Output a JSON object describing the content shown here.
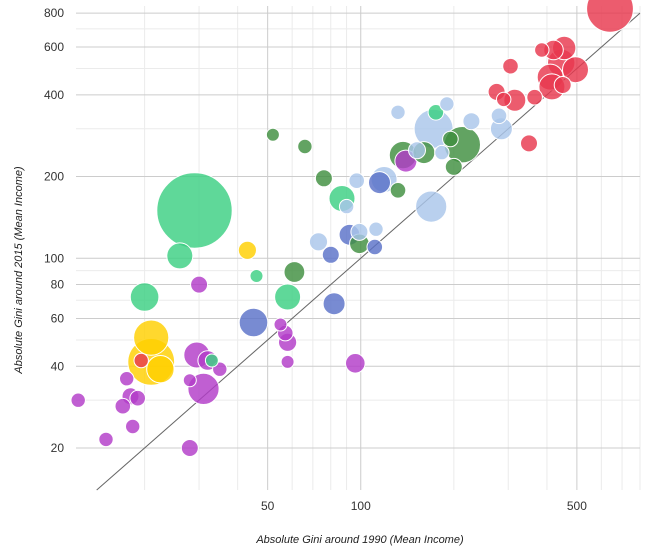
{
  "chart_data": {
    "type": "scatter",
    "subtype": "bubble",
    "title": "",
    "xlabel": "Absolute Gini around 1990 (Mean Income)",
    "ylabel": "Absolute Gini around 2015 (Mean Income)",
    "xscale": "log",
    "yscale": "log",
    "xlim": [
      12,
      800
    ],
    "ylim": [
      14,
      850
    ],
    "x_ticks": [
      50,
      100,
      500
    ],
    "y_ticks": [
      20,
      40,
      60,
      80,
      100,
      200,
      400,
      600,
      800
    ],
    "x_tick_labels": [
      "50",
      "100",
      "500"
    ],
    "y_tick_labels": [
      "20",
      "40",
      "60",
      "80",
      "100",
      "200",
      "400",
      "600",
      "800"
    ],
    "reference_line": "y = x",
    "grid": true,
    "legend": "none",
    "group_colors": {
      "purple": "#b23cc8",
      "yellow": "#ffd000",
      "green_light": "#3ccf82",
      "green_dark": "#3f8f3f",
      "blue_dark": "#5a72c8",
      "blue_light": "#aac6ea",
      "red": "#e8384e"
    },
    "points": [
      {
        "group": "purple",
        "x": 12.2,
        "y": 30,
        "size": 1.1
      },
      {
        "group": "purple",
        "x": 15,
        "y": 21.5,
        "size": 1.1
      },
      {
        "group": "purple",
        "x": 17,
        "y": 28.5,
        "size": 1.2
      },
      {
        "group": "purple",
        "x": 17.5,
        "y": 36,
        "size": 1.1
      },
      {
        "group": "purple",
        "x": 18,
        "y": 31,
        "size": 1.3
      },
      {
        "group": "purple",
        "x": 18.3,
        "y": 24,
        "size": 1.1
      },
      {
        "group": "purple",
        "x": 19,
        "y": 30.5,
        "size": 1.2
      },
      {
        "group": "purple",
        "x": 28,
        "y": 20,
        "size": 1.3
      },
      {
        "group": "purple",
        "x": 28,
        "y": 35.5,
        "size": 1.0
      },
      {
        "group": "purple",
        "x": 29.5,
        "y": 44,
        "size": 2.0
      },
      {
        "group": "purple",
        "x": 30,
        "y": 80,
        "size": 1.3
      },
      {
        "group": "purple",
        "x": 31,
        "y": 33,
        "size": 2.4
      },
      {
        "group": "purple",
        "x": 32,
        "y": 42,
        "size": 1.5
      },
      {
        "group": "purple",
        "x": 35,
        "y": 39,
        "size": 1.1
      },
      {
        "group": "purple",
        "x": 55,
        "y": 57,
        "size": 1.0
      },
      {
        "group": "purple",
        "x": 57,
        "y": 53,
        "size": 1.2
      },
      {
        "group": "purple",
        "x": 58,
        "y": 49,
        "size": 1.4
      },
      {
        "group": "purple",
        "x": 58,
        "y": 41.5,
        "size": 1.0
      },
      {
        "group": "purple",
        "x": 96,
        "y": 41,
        "size": 1.5
      },
      {
        "group": "purple",
        "x": 140,
        "y": 228,
        "size": 1.7
      },
      {
        "group": "yellow",
        "x": 21,
        "y": 51,
        "size": 2.7
      },
      {
        "group": "yellow",
        "x": 21,
        "y": 41.5,
        "size": 3.6
      },
      {
        "group": "yellow",
        "x": 22.5,
        "y": 39,
        "size": 2.1
      },
      {
        "group": "yellow",
        "x": 43,
        "y": 107,
        "size": 1.4
      },
      {
        "group": "red",
        "x": 19.5,
        "y": 42,
        "size": 1.1
      },
      {
        "group": "green_light",
        "x": 20,
        "y": 72,
        "size": 2.2
      },
      {
        "group": "green_light",
        "x": 26,
        "y": 102,
        "size": 2.0
      },
      {
        "group": "green_light",
        "x": 29,
        "y": 150,
        "size": 5.8
      },
      {
        "group": "green_light",
        "x": 33,
        "y": 42,
        "size": 1.0
      },
      {
        "group": "green_light",
        "x": 46,
        "y": 86,
        "size": 1.0
      },
      {
        "group": "green_light",
        "x": 58,
        "y": 72,
        "size": 2.0
      },
      {
        "group": "green_light",
        "x": 87,
        "y": 166,
        "size": 2.0
      },
      {
        "group": "green_light",
        "x": 175,
        "y": 345,
        "size": 1.2
      },
      {
        "group": "green_dark",
        "x": 52,
        "y": 285,
        "size": 1.0
      },
      {
        "group": "green_dark",
        "x": 61,
        "y": 89,
        "size": 1.6
      },
      {
        "group": "green_dark",
        "x": 66,
        "y": 258,
        "size": 1.1
      },
      {
        "group": "green_dark",
        "x": 76,
        "y": 197,
        "size": 1.3
      },
      {
        "group": "green_dark",
        "x": 99,
        "y": 113,
        "size": 1.5
      },
      {
        "group": "green_dark",
        "x": 132,
        "y": 178,
        "size": 1.2
      },
      {
        "group": "green_dark",
        "x": 137,
        "y": 240,
        "size": 2.1
      },
      {
        "group": "green_dark",
        "x": 160,
        "y": 245,
        "size": 1.7
      },
      {
        "group": "green_dark",
        "x": 195,
        "y": 275,
        "size": 1.2
      },
      {
        "group": "green_dark",
        "x": 200,
        "y": 217,
        "size": 1.3
      },
      {
        "group": "green_dark",
        "x": 213,
        "y": 262,
        "size": 2.8
      },
      {
        "group": "blue_dark",
        "x": 45,
        "y": 58,
        "size": 2.2
      },
      {
        "group": "blue_dark",
        "x": 80,
        "y": 103,
        "size": 1.3
      },
      {
        "group": "blue_dark",
        "x": 82,
        "y": 68,
        "size": 1.7
      },
      {
        "group": "blue_dark",
        "x": 92,
        "y": 122,
        "size": 1.6
      },
      {
        "group": "blue_dark",
        "x": 111,
        "y": 110,
        "size": 1.2
      },
      {
        "group": "blue_dark",
        "x": 115,
        "y": 190,
        "size": 1.7
      },
      {
        "group": "blue_light",
        "x": 73,
        "y": 115,
        "size": 1.4
      },
      {
        "group": "blue_light",
        "x": 90,
        "y": 155,
        "size": 1.1
      },
      {
        "group": "blue_light",
        "x": 97,
        "y": 193,
        "size": 1.2
      },
      {
        "group": "blue_light",
        "x": 99,
        "y": 125,
        "size": 1.3
      },
      {
        "group": "blue_light",
        "x": 112,
        "y": 128,
        "size": 1.1
      },
      {
        "group": "blue_light",
        "x": 119,
        "y": 195,
        "size": 2.0
      },
      {
        "group": "blue_light",
        "x": 132,
        "y": 345,
        "size": 1.1
      },
      {
        "group": "blue_light",
        "x": 152,
        "y": 250,
        "size": 1.3
      },
      {
        "group": "blue_light",
        "x": 169,
        "y": 155,
        "size": 2.4
      },
      {
        "group": "blue_light",
        "x": 172,
        "y": 300,
        "size": 3.0
      },
      {
        "group": "blue_light",
        "x": 183,
        "y": 245,
        "size": 1.1
      },
      {
        "group": "blue_light",
        "x": 190,
        "y": 370,
        "size": 1.1
      },
      {
        "group": "blue_light",
        "x": 228,
        "y": 320,
        "size": 1.3
      },
      {
        "group": "blue_light",
        "x": 280,
        "y": 335,
        "size": 1.2
      },
      {
        "group": "blue_light",
        "x": 285,
        "y": 300,
        "size": 1.7
      },
      {
        "group": "red",
        "x": 275,
        "y": 410,
        "size": 1.3
      },
      {
        "group": "red",
        "x": 290,
        "y": 385,
        "size": 1.1
      },
      {
        "group": "red",
        "x": 305,
        "y": 510,
        "size": 1.2
      },
      {
        "group": "red",
        "x": 315,
        "y": 382,
        "size": 1.7
      },
      {
        "group": "red",
        "x": 350,
        "y": 265,
        "size": 1.3
      },
      {
        "group": "red",
        "x": 365,
        "y": 392,
        "size": 1.2
      },
      {
        "group": "red",
        "x": 385,
        "y": 585,
        "size": 1.1
      },
      {
        "group": "red",
        "x": 410,
        "y": 465,
        "size": 2.0
      },
      {
        "group": "red",
        "x": 415,
        "y": 428,
        "size": 2.0
      },
      {
        "group": "red",
        "x": 420,
        "y": 585,
        "size": 1.5
      },
      {
        "group": "red",
        "x": 445,
        "y": 525,
        "size": 2.1
      },
      {
        "group": "red",
        "x": 450,
        "y": 435,
        "size": 1.3
      },
      {
        "group": "red",
        "x": 455,
        "y": 595,
        "size": 1.8
      },
      {
        "group": "red",
        "x": 495,
        "y": 495,
        "size": 2.0
      },
      {
        "group": "red",
        "x": 640,
        "y": 830,
        "size": 3.6
      }
    ]
  }
}
